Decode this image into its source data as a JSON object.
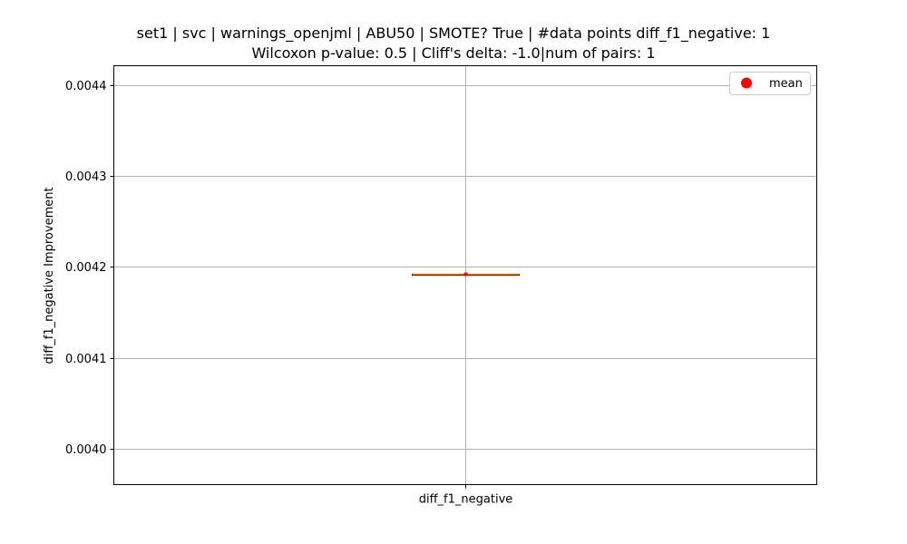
{
  "chart_data": {
    "type": "box",
    "title_line1": "set1 | svc | warnings_openjml | ABU50 | SMOTE? True | #data points diff_f1_negative: 1",
    "title_line2": "Wilcoxon p-value: 0.5 | Cliff's delta: -1.0|num of pairs: 1",
    "ylabel": "diff_f1_negative Improvement",
    "categories": [
      "diff_f1_negative"
    ],
    "ylim": [
      0.003961,
      0.004421
    ],
    "yticks": [
      0.004,
      0.0041,
      0.0042,
      0.0043,
      0.0044
    ],
    "ytick_labels": [
      "0.0040",
      "0.0041",
      "0.0042",
      "0.0043",
      "0.0044"
    ],
    "box": {
      "category": "diff_f1_negative",
      "min": 0.004192,
      "q1": 0.004192,
      "median": 0.004192,
      "q3": 0.004192,
      "max": 0.004192,
      "mean": 0.004192
    },
    "legend": {
      "label": "mean",
      "placement": "top-right"
    },
    "grid": true,
    "colors": {
      "median": "#ff7f0e",
      "mean": "#ff0000",
      "grid": "#b0b0b0",
      "axis": "#000000"
    }
  }
}
